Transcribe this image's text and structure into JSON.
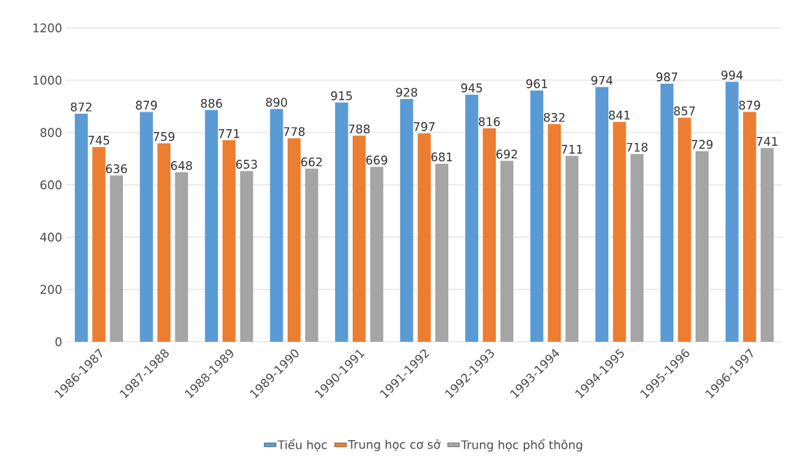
{
  "chart_data": {
    "type": "bar",
    "categories": [
      "1986-1987",
      "1987-1988",
      "1988-1989",
      "1989-1990",
      "1990-1991",
      "1991-1992",
      "1992-1993",
      "1993-1994",
      "1994-1995",
      "1995-1996",
      "1996-1997"
    ],
    "series": [
      {
        "name": "Tiểu học",
        "color": "#5b9bd5",
        "values": [
          872,
          879,
          886,
          890,
          915,
          928,
          945,
          961,
          974,
          987,
          994
        ]
      },
      {
        "name": "Trung học cơ sở",
        "color": "#ed7d31",
        "values": [
          745,
          759,
          771,
          778,
          788,
          797,
          816,
          832,
          841,
          857,
          879
        ]
      },
      {
        "name": "Trung học phổ thông",
        "color": "#a5a5a5",
        "values": [
          636,
          648,
          653,
          662,
          669,
          681,
          692,
          711,
          718,
          729,
          741
        ]
      }
    ],
    "ylim": [
      0,
      1200
    ],
    "yticks": [
      0,
      200,
      400,
      600,
      800,
      1000,
      1200
    ],
    "grid": "y",
    "legend": "bottom",
    "data_labels": true
  }
}
